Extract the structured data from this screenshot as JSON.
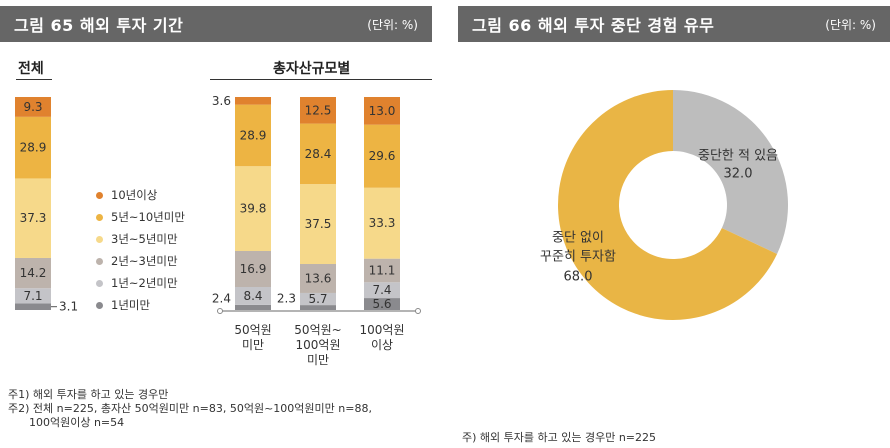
{
  "left_figure": {
    "title": "그림 65  해외 투자 기간",
    "unit": "(단위: %)",
    "overall_label": "전체",
    "by_size_label": "총자산규모별",
    "notes": [
      "주1) 해외 투자를 하고 있는 경우만",
      "주2) 전체 n=225, 총자산 50억원미만 n=83, 50억원~100억원미만 n=88,",
      "      100억원이상 n=54"
    ]
  },
  "right_figure": {
    "title": "그림 66  해외 투자 중단 경험 유무",
    "unit": "(단위: %)",
    "note": "주) 해외 투자를 하고 있는 경우만 n=225"
  },
  "colors": {
    "header_bg": "#666666",
    "c10plus": "#E0822E",
    "c5to10": "#EDB443",
    "c3to5": "#F6D98A",
    "c2to3": "#BDB3AC",
    "c1to2": "#C4C4C8",
    "cunder1": "#8A8A8E",
    "pie_yes": "#BDBDBD",
    "pie_no": "#E9B545"
  },
  "chart_data": [
    {
      "type": "bar",
      "stacked": true,
      "title": "해외 투자 기간",
      "series": [
        {
          "name": "1년미만",
          "values": [
            3.1,
            2.4,
            2.3,
            5.6
          ]
        },
        {
          "name": "1년~2년미만",
          "values": [
            7.1,
            8.4,
            5.7,
            7.4
          ]
        },
        {
          "name": "2년~3년미만",
          "values": [
            14.2,
            16.9,
            13.6,
            11.1
          ]
        },
        {
          "name": "3년~5년미만",
          "values": [
            37.3,
            39.8,
            37.5,
            33.3
          ]
        },
        {
          "name": "5년~10년미만",
          "values": [
            28.9,
            28.9,
            28.4,
            29.6
          ]
        },
        {
          "name": "10년이상",
          "values": [
            9.3,
            3.6,
            12.5,
            13.0
          ]
        }
      ],
      "labels": [
        [
          "3.1",
          "7.1",
          "14.2",
          "37.3",
          "28.9",
          "9.3"
        ],
        [
          "2.4",
          "8.4",
          "16.9",
          "39.8",
          "28.9",
          "3.6"
        ],
        [
          "2.3",
          "5.7",
          "13.6",
          "37.5",
          "28.4",
          "12.5"
        ],
        [
          "5.6",
          "7.4",
          "11.1",
          "33.3",
          "29.6",
          "13.0"
        ]
      ],
      "categories": [
        "전체",
        "50억원미만",
        "50억원~100억원미만",
        "100억원이상"
      ],
      "category_lines": [
        [
          "50억원",
          "미만"
        ],
        [
          "50억원~",
          "100억원",
          "미만"
        ],
        [
          "100억원",
          "이상"
        ]
      ],
      "legend": [
        "10년이상",
        "5년~10년미만",
        "3년~5년미만",
        "2년~3년미만",
        "1년~2년미만",
        "1년미만"
      ],
      "ylim": [
        0,
        100
      ]
    },
    {
      "type": "pie",
      "donut": true,
      "title": "해외 투자 중단 경험 유무",
      "slices": [
        {
          "name": "중단한 적 있음",
          "value": 32.0,
          "label": "32.0"
        },
        {
          "name": "중단 없이 꾸준히 투자함",
          "name_lines": [
            "중단 없이",
            "꾸준히 투자함"
          ],
          "value": 68.0,
          "label": "68.0"
        }
      ]
    }
  ]
}
